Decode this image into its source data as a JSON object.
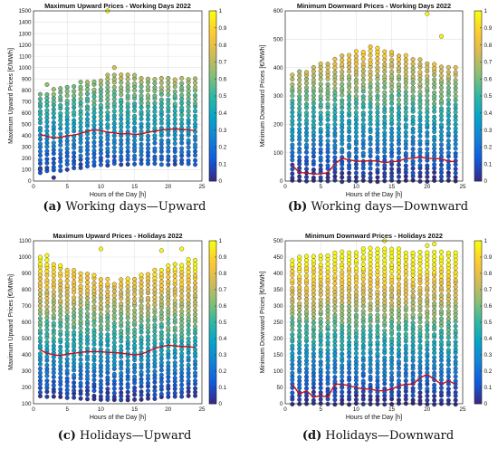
{
  "captions": [
    {
      "letter": "(a)",
      "text": "Working days—Upward"
    },
    {
      "letter": "(b)",
      "text": "Working days—Downward"
    },
    {
      "letter": "(c)",
      "text": "Holidays—Upward"
    },
    {
      "letter": "(d)",
      "text": "Holidays—Downward"
    }
  ],
  "colors": {
    "line": "#c0101c",
    "colormap": [
      "#352a87",
      "#0f5cdd",
      "#1481d6",
      "#06a4ca",
      "#2eb7a4",
      "#87bf77",
      "#d1bb59",
      "#fec832",
      "#f9fb0e"
    ]
  },
  "chart_data": [
    {
      "type": "scatter",
      "title": "Maximum Upward Prices - Working Days 2022",
      "xlabel": "Hours of the Day [h]",
      "ylabel": "Maximum Upward Prices [€/MWh]",
      "xlim": [
        0,
        25
      ],
      "ylim": [
        0,
        1500
      ],
      "xticks": [
        0,
        5,
        10,
        15,
        20,
        25
      ],
      "yticks": [
        0,
        100,
        200,
        300,
        400,
        500,
        600,
        700,
        800,
        900,
        1000,
        1100,
        1200,
        1300,
        1400,
        1500
      ],
      "colorbar": {
        "lim": [
          0,
          1
        ],
        "ticks": [
          0,
          0.1,
          0.2,
          0.3,
          0.4,
          0.5,
          0.6,
          0.7,
          0.8,
          0.9,
          1
        ]
      },
      "scatter_range": [
        {
          "hour": 1,
          "min": 80,
          "max": 780
        },
        {
          "hour": 12,
          "min": 150,
          "max": 950
        },
        {
          "hour": 24,
          "min": 150,
          "max": 900
        }
      ],
      "outliers": [
        {
          "x": 1,
          "y": 100
        },
        {
          "x": 2,
          "y": 850
        },
        {
          "x": 3,
          "y": 30
        },
        {
          "x": 11,
          "y": 1500
        },
        {
          "x": 12,
          "y": 1000
        }
      ],
      "mean_line": {
        "x": [
          1,
          2,
          3,
          4,
          5,
          6,
          7,
          8,
          9,
          10,
          11,
          12,
          13,
          14,
          15,
          16,
          17,
          18,
          19,
          20,
          21,
          22,
          23,
          24
        ],
        "y": [
          410,
          395,
          380,
          385,
          400,
          405,
          420,
          440,
          450,
          445,
          430,
          425,
          415,
          420,
          410,
          415,
          430,
          440,
          450,
          455,
          460,
          455,
          450,
          445
        ]
      }
    },
    {
      "type": "scatter",
      "title": "Minimum Downward Prices - Working Days 2022",
      "xlabel": "Hours of the Day [h]",
      "ylabel": "Minimum Downward Prices [€/MWh]",
      "xlim": [
        0,
        25
      ],
      "ylim": [
        0,
        600
      ],
      "xticks": [
        0,
        5,
        10,
        15,
        20,
        25
      ],
      "yticks": [
        0,
        100,
        200,
        300,
        400,
        500,
        600
      ],
      "colorbar": {
        "lim": [
          0,
          1
        ],
        "ticks": [
          0,
          0.1,
          0.2,
          0.3,
          0.4,
          0.5,
          0.6,
          0.7,
          0.8,
          0.9,
          1
        ]
      },
      "scatter_range": [
        {
          "hour": 1,
          "min": 0,
          "max": 380
        },
        {
          "hour": 12,
          "min": 0,
          "max": 480
        },
        {
          "hour": 24,
          "min": 0,
          "max": 400
        }
      ],
      "outliers": [
        {
          "x": 20,
          "y": 590
        },
        {
          "x": 22,
          "y": 510
        }
      ],
      "mean_line": {
        "x": [
          1,
          2,
          3,
          4,
          5,
          6,
          7,
          8,
          9,
          10,
          11,
          12,
          13,
          14,
          15,
          16,
          17,
          18,
          19,
          20,
          21,
          22,
          23,
          24
        ],
        "y": [
          55,
          30,
          28,
          25,
          25,
          30,
          60,
          80,
          75,
          70,
          70,
          72,
          70,
          65,
          68,
          70,
          80,
          80,
          85,
          80,
          80,
          78,
          70,
          68
        ]
      }
    },
    {
      "type": "scatter",
      "title": "Maximum Upward Prices - Holidays 2022",
      "xlabel": "Hours of the Day [h]",
      "ylabel": "Maximum Upward Prices [€/MWh]",
      "xlim": [
        0,
        25
      ],
      "ylim": [
        100,
        1100
      ],
      "xticks": [
        0,
        5,
        10,
        15,
        20,
        25
      ],
      "yticks": [
        100,
        200,
        300,
        400,
        500,
        600,
        700,
        800,
        900,
        1000,
        1100
      ],
      "colorbar": {
        "lim": [
          0,
          1
        ],
        "ticks": [
          0,
          0.1,
          0.2,
          0.3,
          0.4,
          0.5,
          0.6,
          0.7,
          0.8,
          0.9,
          1
        ]
      },
      "scatter_range": [
        {
          "hour": 1,
          "min": 150,
          "max": 1000
        },
        {
          "hour": 12,
          "min": 120,
          "max": 850
        },
        {
          "hour": 24,
          "min": 150,
          "max": 1000
        }
      ],
      "outliers": [
        {
          "x": 1,
          "y": 1000
        },
        {
          "x": 2,
          "y": 1010
        },
        {
          "x": 10,
          "y": 1050
        },
        {
          "x": 19,
          "y": 1040
        },
        {
          "x": 22,
          "y": 1050
        }
      ],
      "mean_line": {
        "x": [
          1,
          2,
          3,
          4,
          5,
          6,
          7,
          8,
          9,
          10,
          11,
          12,
          13,
          14,
          15,
          16,
          17,
          18,
          19,
          20,
          21,
          22,
          23,
          24
        ],
        "y": [
          430,
          410,
          400,
          395,
          405,
          410,
          415,
          420,
          420,
          420,
          415,
          415,
          410,
          405,
          400,
          405,
          420,
          440,
          450,
          460,
          455,
          450,
          450,
          445
        ]
      }
    },
    {
      "type": "scatter",
      "title": "Minimum Downward Prices - Holidays 2022",
      "xlabel": "Hours of the Day [h]",
      "ylabel": "Minimum Downward Prices [€/MWh]",
      "xlim": [
        0,
        25
      ],
      "ylim": [
        0,
        500
      ],
      "xticks": [
        0,
        5,
        10,
        15,
        20,
        25
      ],
      "yticks": [
        0,
        50,
        100,
        150,
        200,
        250,
        300,
        350,
        400,
        450,
        500
      ],
      "colorbar": {
        "lim": [
          0,
          1
        ],
        "ticks": [
          0,
          0.1,
          0.2,
          0.3,
          0.4,
          0.5,
          0.6,
          0.7,
          0.8,
          0.9,
          1
        ]
      },
      "scatter_range": [
        {
          "hour": 1,
          "min": 0,
          "max": 450
        },
        {
          "hour": 12,
          "min": 0,
          "max": 480
        },
        {
          "hour": 24,
          "min": 0,
          "max": 470
        }
      ],
      "outliers": [
        {
          "x": 14,
          "y": 500
        },
        {
          "x": 20,
          "y": 485
        },
        {
          "x": 21,
          "y": 490
        }
      ],
      "mean_line": {
        "x": [
          1,
          2,
          3,
          4,
          5,
          6,
          7,
          8,
          9,
          10,
          11,
          12,
          13,
          14,
          15,
          16,
          17,
          18,
          19,
          20,
          21,
          22,
          23,
          24
        ],
        "y": [
          60,
          30,
          40,
          20,
          25,
          20,
          60,
          60,
          55,
          50,
          45,
          45,
          40,
          40,
          45,
          55,
          60,
          60,
          80,
          90,
          75,
          60,
          70,
          60
        ]
      }
    }
  ]
}
